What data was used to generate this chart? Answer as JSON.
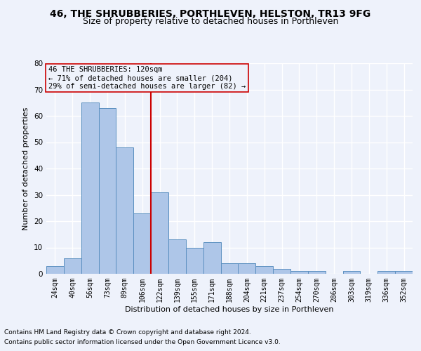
{
  "title": "46, THE SHRUBBERIES, PORTHLEVEN, HELSTON, TR13 9FG",
  "subtitle": "Size of property relative to detached houses in Porthleven",
  "xlabel": "Distribution of detached houses by size in Porthleven",
  "ylabel": "Number of detached properties",
  "categories": [
    "24sqm",
    "40sqm",
    "56sqm",
    "73sqm",
    "89sqm",
    "106sqm",
    "122sqm",
    "139sqm",
    "155sqm",
    "171sqm",
    "188sqm",
    "204sqm",
    "221sqm",
    "237sqm",
    "254sqm",
    "270sqm",
    "286sqm",
    "303sqm",
    "319sqm",
    "336sqm",
    "352sqm"
  ],
  "values": [
    3,
    6,
    65,
    63,
    48,
    23,
    31,
    13,
    10,
    12,
    4,
    4,
    3,
    2,
    1,
    1,
    0,
    1,
    0,
    1,
    1
  ],
  "bar_color": "#aec6e8",
  "bar_edge_color": "#5a8fc0",
  "background_color": "#eef2fb",
  "grid_color": "#ffffff",
  "property_label": "46 THE SHRUBBERIES: 120sqm",
  "annotation_line1": "← 71% of detached houses are smaller (204)",
  "annotation_line2": "29% of semi-detached houses are larger (82) →",
  "vline_color": "#cc0000",
  "annotation_box_color": "#cc0000",
  "vline_x_index": 6.0,
  "ylim": [
    0,
    80
  ],
  "yticks": [
    0,
    10,
    20,
    30,
    40,
    50,
    60,
    70,
    80
  ],
  "footnote1": "Contains HM Land Registry data © Crown copyright and database right 2024.",
  "footnote2": "Contains public sector information licensed under the Open Government Licence v3.0.",
  "title_fontsize": 10,
  "subtitle_fontsize": 9,
  "axis_label_fontsize": 8,
  "tick_fontsize": 7,
  "annotation_fontsize": 7.5,
  "footnote_fontsize": 6.5
}
